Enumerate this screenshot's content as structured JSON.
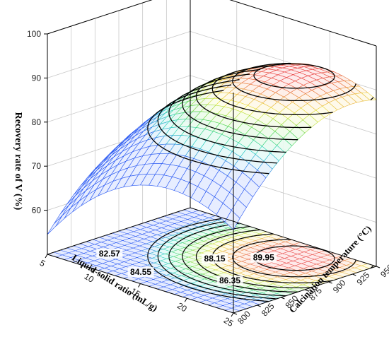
{
  "chart_data": {
    "type": "surface3d",
    "title": "",
    "zlabel": "Recovery rate of V (%)",
    "xlabel": "Liquid-solid ratio (mL/g)",
    "ylabel": "Calcination temperature (°C)",
    "x_ticks": [
      "5",
      "10",
      "15",
      "20",
      "25"
    ],
    "y_ticks": [
      "800",
      "825",
      "850",
      "875",
      "900",
      "925",
      "950"
    ],
    "z_ticks": [
      "60",
      "70",
      "80",
      "90",
      "100"
    ],
    "xlim": [
      5,
      25
    ],
    "ylim": [
      800,
      950
    ],
    "zlim": [
      50,
      100
    ],
    "model": {
      "form": "quadratic",
      "intercept": 91.5,
      "x_linear": 2.4,
      "y_linear": 2.6,
      "x_quadratic": -6.0,
      "y_quadratic": -3.2,
      "interaction": 0.5,
      "x_center": 17.5,
      "y_center": 900,
      "x_half_range": 7.5,
      "y_half_range": 50
    },
    "contour_levels": [
      78.99,
      80.78,
      82.57,
      84.55,
      86.35,
      88.15,
      89.95,
      91.3
    ],
    "contour_labels": [
      {
        "text": "82.57",
        "x": 8.4,
        "y": 832
      },
      {
        "text": "84.55",
        "x": 13.2,
        "y": 818
      },
      {
        "text": "86.35",
        "x": 19.5,
        "y": 850
      },
      {
        "text": "88.15",
        "x": 15.0,
        "y": 878
      },
      {
        "text": "89.95",
        "x": 17.5,
        "y": 905
      }
    ],
    "legend": "none",
    "grid": true
  }
}
